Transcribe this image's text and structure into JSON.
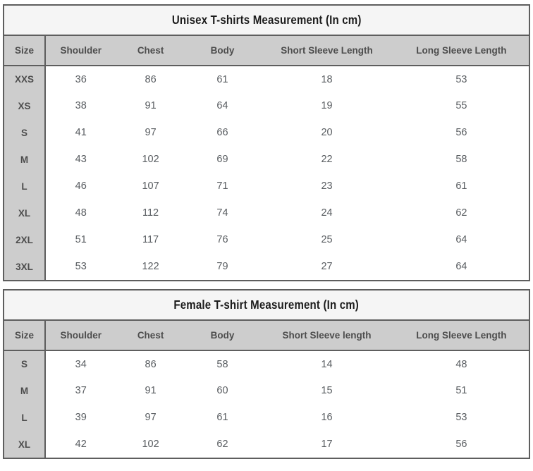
{
  "colors": {
    "border": "#5e5e5e",
    "title_bg": "#f5f5f5",
    "header_bg": "#cdcdcd",
    "header_text": "#4d4d4d",
    "data_text": "#595d61",
    "title_text": "#1c1c1c"
  },
  "tables": [
    {
      "title": "Unisex T-shirts Measurement (In cm)",
      "columns": [
        "Size",
        "Shoulder",
        "Chest",
        "Body",
        "Short Sleeve Length",
        "Long Sleeve Length"
      ],
      "rows": [
        [
          "XXS",
          "36",
          "86",
          "61",
          "18",
          "53"
        ],
        [
          "XS",
          "38",
          "91",
          "64",
          "19",
          "55"
        ],
        [
          "S",
          "41",
          "97",
          "66",
          "20",
          "56"
        ],
        [
          "M",
          "43",
          "102",
          "69",
          "22",
          "58"
        ],
        [
          "L",
          "46",
          "107",
          "71",
          "23",
          "61"
        ],
        [
          "XL",
          "48",
          "112",
          "74",
          "24",
          "62"
        ],
        [
          "2XL",
          "51",
          "117",
          "76",
          "25",
          "64"
        ],
        [
          "3XL",
          "53",
          "122",
          "79",
          "27",
          "64"
        ]
      ]
    },
    {
      "title": "Female T-shirt Measurement (In cm)",
      "columns": [
        "Size",
        "Shoulder",
        "Chest",
        "Body",
        "Short Sleeve length",
        "Long Sleeve Length"
      ],
      "rows": [
        [
          "S",
          "34",
          "86",
          "58",
          "14",
          "48"
        ],
        [
          "M",
          "37",
          "91",
          "60",
          "15",
          "51"
        ],
        [
          "L",
          "39",
          "97",
          "61",
          "16",
          "53"
        ],
        [
          "XL",
          "42",
          "102",
          "62",
          "17",
          "56"
        ]
      ]
    }
  ]
}
